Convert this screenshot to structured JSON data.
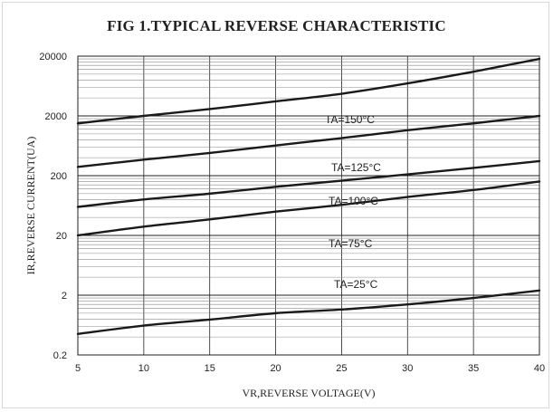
{
  "chart_data": {
    "type": "line",
    "title": "FIG 1.TYPICAL REVERSE CHARACTERISTIC",
    "xlabel": "VR,REVERSE  VOLTAGE(V)",
    "ylabel": "IR,REVERSE  CURRENT(UA)",
    "x_scale": "linear",
    "y_scale": "log",
    "xlim": [
      5,
      40
    ],
    "ylim": [
      0.2,
      20000
    ],
    "x_ticks": [
      5,
      10,
      15,
      20,
      25,
      30,
      35,
      40
    ],
    "y_ticks": [
      0.2,
      2,
      20,
      200,
      2000,
      20000
    ],
    "y_tick_labels": [
      "0.2",
      "2",
      "20",
      "200",
      "2000",
      "20000"
    ],
    "grid": true,
    "series": [
      {
        "name": "TA=150°C",
        "x": [
          5,
          10,
          15,
          20,
          25,
          30,
          35,
          40
        ],
        "y": [
          1500,
          2000,
          2600,
          3500,
          4700,
          7000,
          11000,
          18000
        ]
      },
      {
        "name": "TA=125°C",
        "x": [
          5,
          10,
          15,
          20,
          25,
          30,
          35,
          40
        ],
        "y": [
          280,
          370,
          480,
          640,
          850,
          1150,
          1500,
          2000
        ]
      },
      {
        "name": "TA=100°C",
        "x": [
          5,
          10,
          15,
          20,
          25,
          30,
          35,
          40
        ],
        "y": [
          60,
          80,
          100,
          130,
          165,
          210,
          270,
          350
        ]
      },
      {
        "name": "TA=75°C",
        "x": [
          5,
          10,
          15,
          20,
          25,
          30,
          35,
          40
        ],
        "y": [
          20,
          28,
          37,
          50,
          65,
          88,
          115,
          160
        ]
      },
      {
        "name": "TA=25°C",
        "x": [
          5,
          10,
          15,
          20,
          25,
          30,
          35,
          40
        ],
        "y": [
          0.45,
          0.62,
          0.78,
          1.0,
          1.15,
          1.4,
          1.8,
          2.4
        ]
      }
    ]
  }
}
